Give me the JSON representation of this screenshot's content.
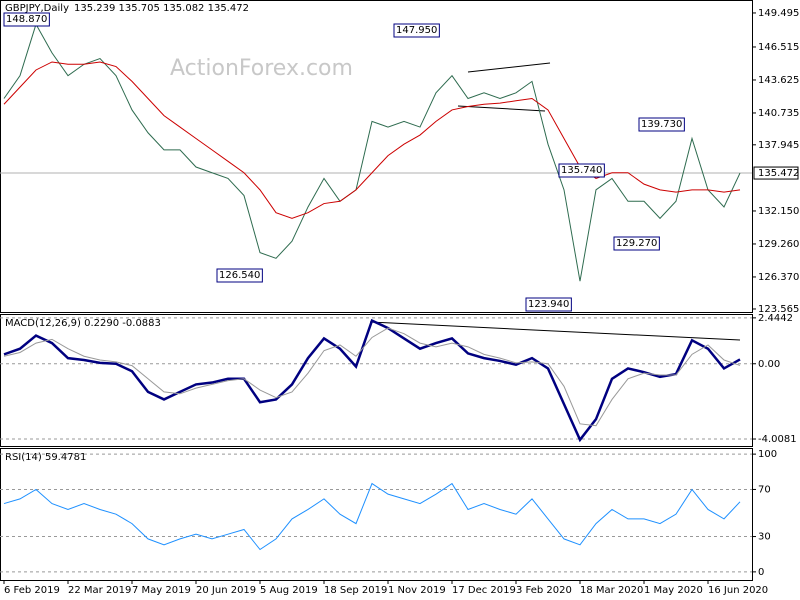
{
  "chart_data": [
    {
      "type": "line",
      "title": "GBPJPY,Daily",
      "quote": "135.239 135.705 135.082 135.472",
      "watermark": "ActionForex.com",
      "categories": [
        "6 Feb 2019",
        null,
        null,
        null,
        "22 Mar 2019",
        null,
        null,
        null,
        "7 May 2019",
        null,
        null,
        null,
        "20 Jun 2019",
        null,
        null,
        null,
        "5 Aug 2019",
        null,
        null,
        null,
        "18 Sep 2019",
        null,
        null,
        null,
        "1 Nov 2019",
        null,
        null,
        null,
        "17 Dec 2019",
        null,
        null,
        null,
        "3 Feb 2020",
        null,
        null,
        null,
        "18 Mar 2020",
        null,
        null,
        null,
        "1 May 2020",
        null,
        null,
        null,
        "16 Jun 2020",
        null,
        null
      ],
      "series": [
        {
          "name": "GBPJPY",
          "color": "#2e6b4f",
          "values": [
            142.0,
            144.0,
            148.5,
            146.0,
            144.0,
            145.0,
            145.5,
            144.0,
            141.0,
            139.0,
            137.5,
            137.5,
            136.0,
            135.5,
            135.0,
            133.5,
            128.5,
            128.0,
            129.5,
            132.5,
            135.0,
            133.0,
            134.0,
            140.0,
            139.5,
            140.0,
            139.5,
            142.5,
            144.0,
            142.0,
            142.5,
            142.0,
            142.5,
            143.5,
            138.0,
            134.0,
            126.0,
            134.0,
            135.0,
            133.0,
            133.0,
            131.5,
            133.0,
            138.5,
            134.0,
            132.5,
            135.472
          ]
        },
        {
          "name": "MA",
          "color": "#cc0000",
          "values": [
            141.5,
            143.0,
            144.5,
            145.2,
            145.0,
            145.0,
            145.2,
            144.8,
            143.5,
            142.0,
            140.5,
            139.5,
            138.5,
            137.5,
            136.5,
            135.5,
            134.0,
            132.0,
            131.5,
            132.0,
            132.8,
            133.0,
            134.0,
            135.5,
            137.0,
            138.0,
            138.8,
            140.0,
            141.0,
            141.3,
            141.5,
            141.6,
            141.8,
            142.0,
            141.0,
            138.5,
            136.0,
            135.0,
            135.5,
            135.5,
            134.5,
            134.0,
            133.8,
            134.0,
            134.0,
            133.8,
            134.0
          ]
        }
      ],
      "last_price": 135.472,
      "annotations": [
        "148.870",
        "147.950",
        "126.540",
        "135.740",
        "139.730",
        "129.270",
        "123.940"
      ],
      "ylim": [
        123.3,
        150.63
      ],
      "yticks": [
        149.495,
        146.515,
        143.625,
        140.735,
        137.945,
        {
          "value": 132.15,
          "label": "132.150"
        },
        {
          "value": 129.26,
          "label": "129.260"
        },
        {
          "value": 126.37,
          "label": "126.370"
        },
        123.565
      ]
    },
    {
      "type": "line",
      "title": "MACD(12,26,9) 0.2290 -0.0883",
      "series": [
        {
          "name": "MACD",
          "color": "#000080",
          "values": [
            0.5,
            0.8,
            1.5,
            1.1,
            0.3,
            0.2,
            0.05,
            0,
            -0.4,
            -1.5,
            -1.9,
            -1.5,
            -1.1,
            -1.0,
            -0.8,
            -0.8,
            -2.05,
            -1.9,
            -1.1,
            0.3,
            1.35,
            0.8,
            -0.15,
            2.3,
            1.9,
            1.35,
            0.8,
            1.1,
            1.35,
            0.55,
            0.3,
            0.15,
            -0.05,
            0.3,
            -0.25,
            -2.15,
            -4.05,
            -2.95,
            -0.8,
            -0.25,
            -0.45,
            -0.7,
            -0.55,
            1.25,
            0.8,
            -0.25,
            0.229
          ]
        },
        {
          "name": "Signal",
          "color": "#999999",
          "values": [
            0.4,
            0.6,
            1.1,
            1.3,
            0.8,
            0.4,
            0.2,
            0.1,
            -0.1,
            -0.8,
            -1.5,
            -1.6,
            -1.3,
            -1.1,
            -0.9,
            -0.8,
            -1.4,
            -1.8,
            -1.5,
            -0.5,
            0.7,
            1.0,
            0.4,
            1.4,
            1.9,
            1.6,
            1.1,
            0.9,
            1.1,
            0.9,
            0.5,
            0.3,
            0.05,
            0.1,
            0.0,
            -1.2,
            -3.2,
            -3.3,
            -1.9,
            -0.8,
            -0.5,
            -0.6,
            -0.6,
            0.5,
            1.0,
            0.2,
            -0.0883
          ]
        }
      ],
      "ylim": [
        -4.38,
        2.65
      ],
      "yticks": [
        2.4442,
        {
          "value": 0,
          "label": "0.00"
        },
        -4.0081
      ]
    },
    {
      "type": "line",
      "title": "RSI(14) 59.4781",
      "series": [
        {
          "name": "RSI",
          "color": "#1e90ff",
          "values": [
            58,
            62,
            70,
            58,
            53,
            58,
            53,
            49,
            41,
            28,
            23,
            28,
            32,
            28,
            32,
            36,
            19,
            28,
            45,
            53,
            62,
            49,
            41,
            75,
            66,
            62,
            58,
            66,
            75,
            53,
            58,
            53,
            49,
            62,
            45,
            28,
            23,
            41,
            53,
            45,
            45,
            41,
            49,
            70,
            53,
            45,
            59.4781
          ]
        }
      ],
      "ylim": [
        -6.9,
        105.2
      ],
      "yticks": [
        100,
        70,
        30,
        0
      ]
    }
  ]
}
